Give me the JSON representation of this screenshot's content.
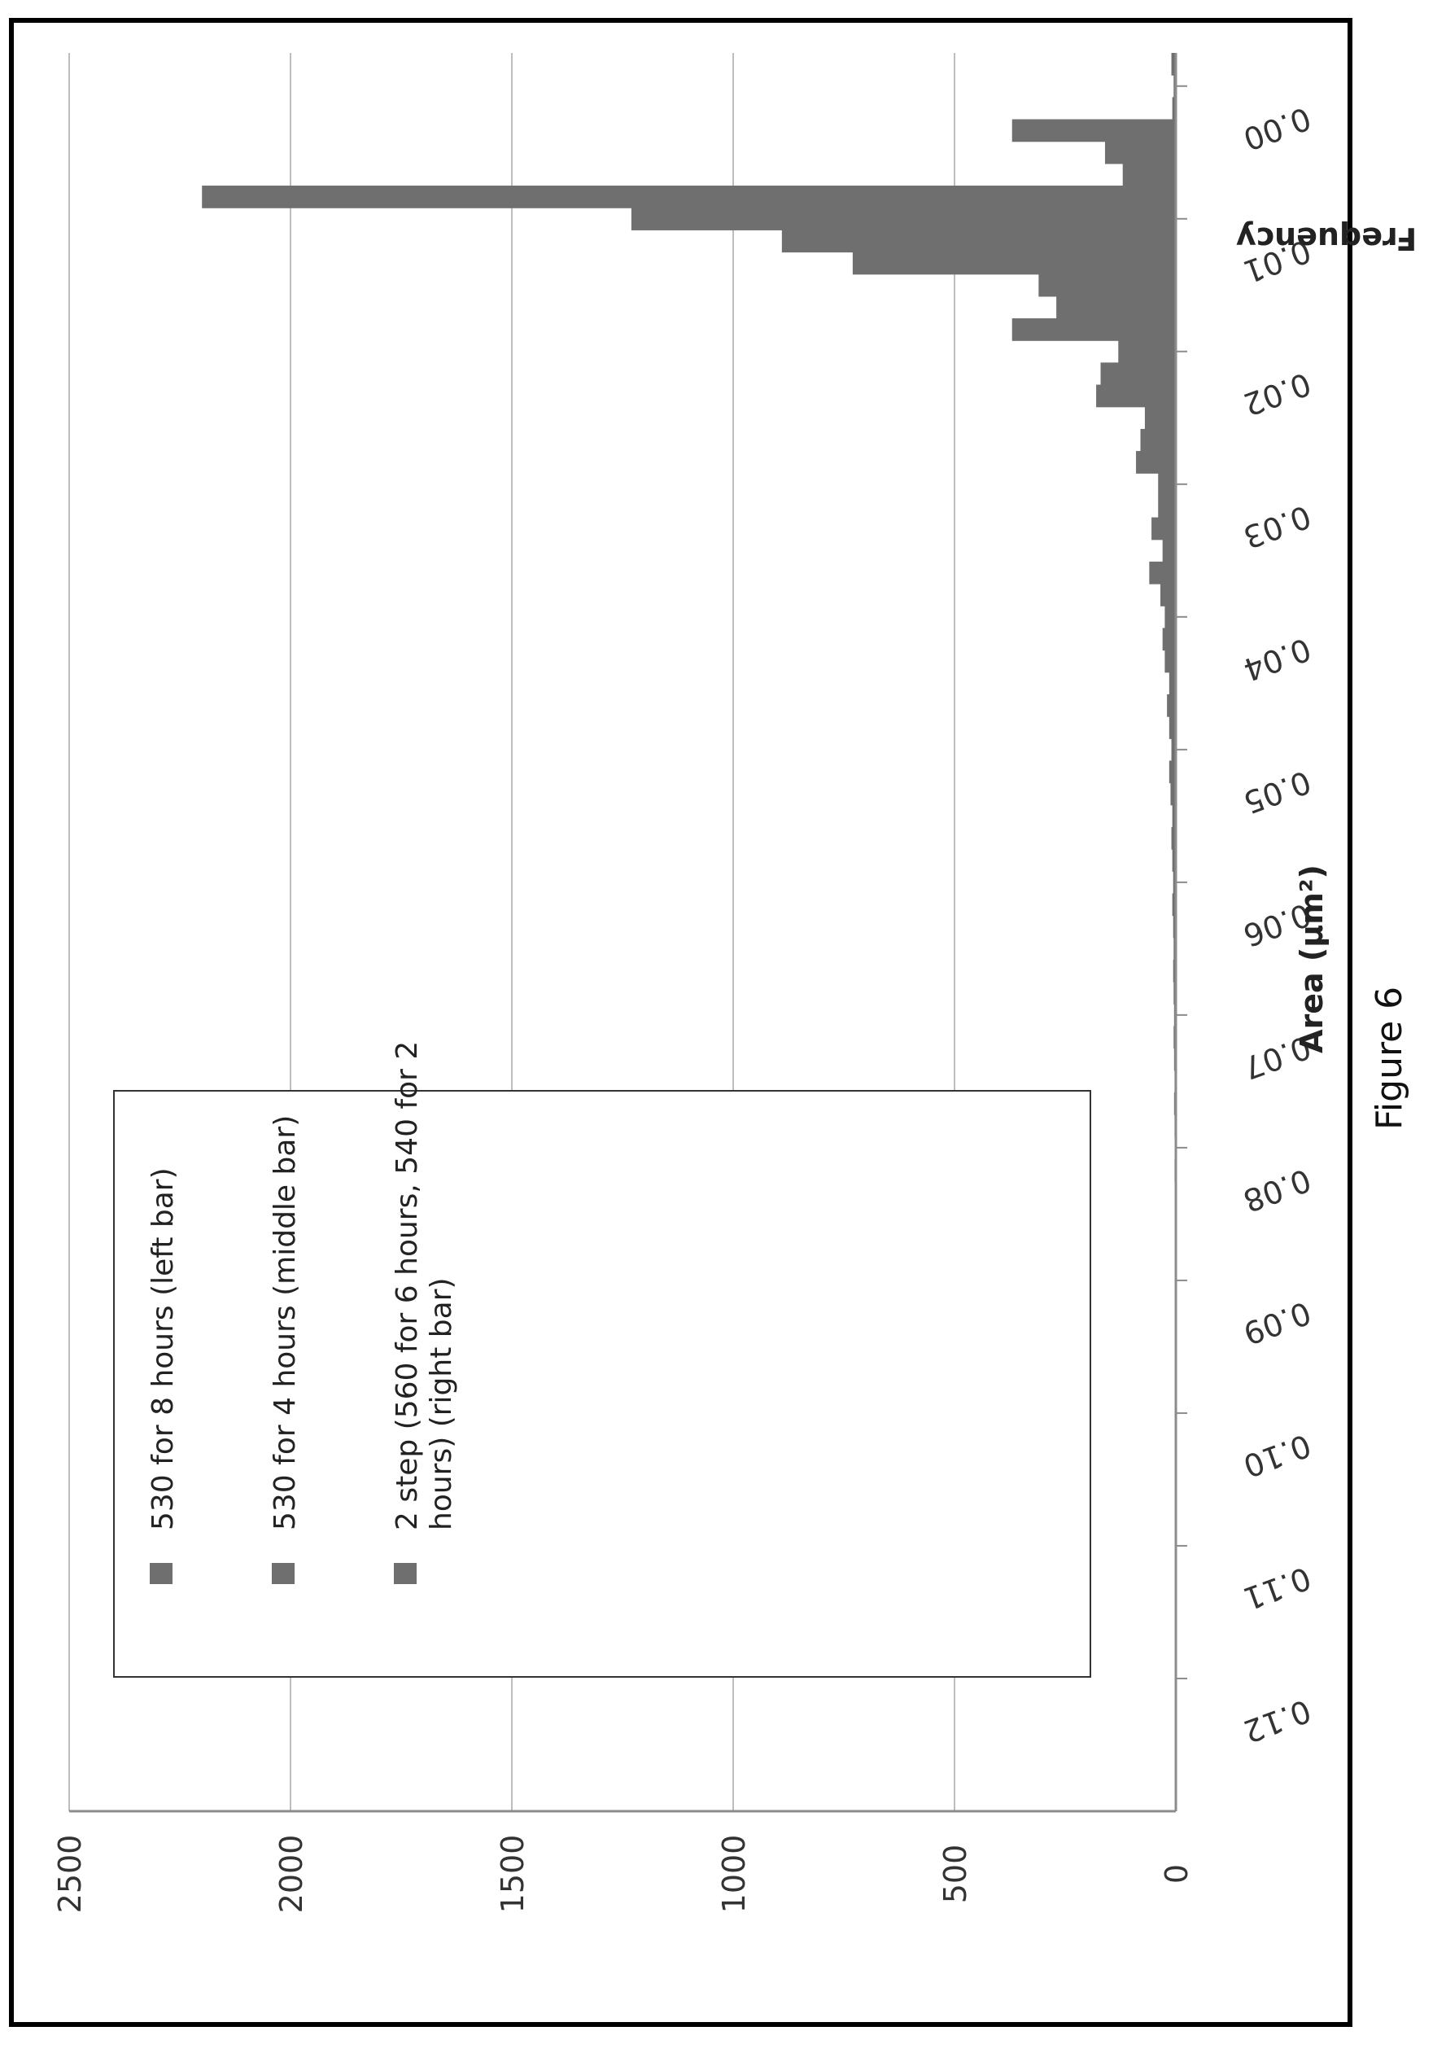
{
  "caption": "Figure 6",
  "chart_data": {
    "type": "bar",
    "orientation": "rotated-90-clockwise",
    "title": "",
    "xlabel": "Area (μm²)",
    "ylabel": "Frequency",
    "ylim": [
      0,
      2500
    ],
    "yticks": [
      "0",
      "500",
      "1000",
      "1500",
      "2000",
      "2500"
    ],
    "xlim": [
      -0.0025,
      0.13
    ],
    "xtick_values": [
      0.0,
      0.01,
      0.02,
      0.03,
      0.04,
      0.05,
      0.06,
      0.07,
      0.08,
      0.09,
      0.1,
      0.11,
      0.12
    ],
    "xticks": [
      "0.00",
      "0.01",
      "0.02",
      "0.03",
      "0.04",
      "0.05",
      "0.06",
      "0.07",
      "0.08",
      "0.09",
      "0.10",
      "0.11",
      "0.12"
    ],
    "grid": true,
    "legend_position": "top-right",
    "categories": [
      0.0,
      0.005,
      0.01,
      0.015,
      0.02,
      0.025,
      0.03,
      0.035,
      0.04,
      0.045,
      0.05,
      0.055,
      0.06,
      0.065,
      0.07,
      0.075,
      0.08,
      0.085,
      0.09,
      0.095,
      0.1
    ],
    "series": [
      {
        "name": "530 for 8 hours (left bar)",
        "values": [
          10,
          370,
          2200,
          730,
          370,
          180,
          90,
          55,
          35,
          25,
          15,
          12,
          8,
          6,
          5,
          4,
          3,
          2,
          2,
          1,
          1
        ]
      },
      {
        "name": "530 for 4 hours (middle bar)",
        "values": [
          5,
          160,
          1230,
          310,
          130,
          70,
          40,
          30,
          25,
          15,
          10,
          8,
          6,
          5,
          4,
          3,
          2,
          2,
          1,
          1,
          1
        ]
      },
      {
        "name": "2 step (560 for 6 hours, 540 for 2 hours) (right bar)",
        "values": [
          8,
          120,
          890,
          270,
          170,
          80,
          40,
          60,
          30,
          20,
          15,
          10,
          8,
          6,
          5,
          4,
          3,
          2,
          2,
          1,
          1
        ]
      }
    ],
    "legend_lines": [
      [
        "530 for 8 hours (left bar)"
      ],
      [
        "530 for 4 hours (middle bar)"
      ],
      [
        "2 step (560 for 6 hours, 540 for 2",
        "hours) (right bar)"
      ]
    ],
    "colors": {
      "bar": "#6f6f6f",
      "grid": "#bdbdbd",
      "frame": "#000000",
      "axis": "#8c8c8c"
    }
  }
}
